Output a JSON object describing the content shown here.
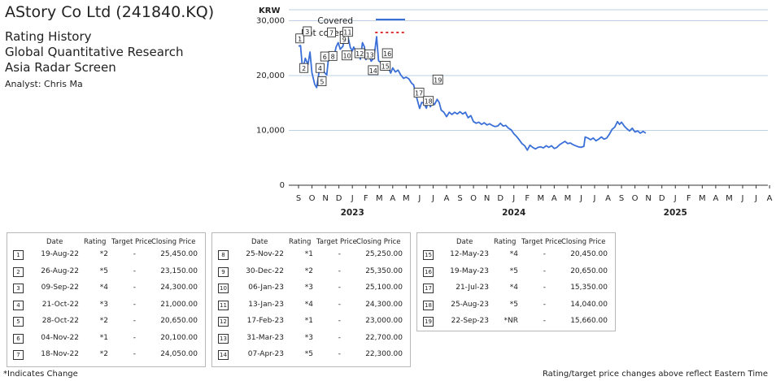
{
  "header": {
    "title": "AStory Co Ltd (241840.KQ)",
    "line1": "Rating History",
    "line2": "Global Quantitative Research",
    "line3": "Asia Radar Screen",
    "analyst": "Analyst: Chris Ma"
  },
  "chart_data": {
    "type": "line",
    "ylabel": "KRW",
    "yticks": [
      "0",
      "10,000",
      "20,000",
      "30,000"
    ],
    "ytick_values": [
      0,
      10000,
      20000,
      30000
    ],
    "ylim": [
      0,
      32000
    ],
    "grid": true,
    "legend_position": "top-left",
    "legend": [
      {
        "label": "Covered",
        "color": "#3a6fd8",
        "style": "solid"
      },
      {
        "label": "Not covered",
        "color": "#e03030",
        "style": "dotted"
      }
    ],
    "xticks": [
      "S",
      "O",
      "N",
      "D",
      "J",
      "F",
      "M",
      "A",
      "M",
      "J",
      "J",
      "A",
      "S",
      "O",
      "N",
      "D",
      "J",
      "F",
      "M",
      "A",
      "M",
      "J",
      "J",
      "A",
      "S",
      "O",
      "N",
      "D",
      "J",
      "F",
      "M",
      "A",
      "M",
      "J",
      "J",
      "A"
    ],
    "years": [
      {
        "label": "2023",
        "month_index": 4
      },
      {
        "label": "2024",
        "month_index": 16
      },
      {
        "label": "2025",
        "month_index": 28
      }
    ],
    "series": [
      {
        "name": "Covered",
        "color": "#3a6fd8",
        "points": [
          [
            0,
            25400
          ],
          [
            0.15,
            25450
          ],
          [
            0.3,
            21000
          ],
          [
            0.5,
            23150
          ],
          [
            0.7,
            22000
          ],
          [
            0.85,
            24300
          ],
          [
            1.0,
            20500
          ],
          [
            1.2,
            18400
          ],
          [
            1.35,
            17800
          ],
          [
            1.55,
            21000
          ],
          [
            1.7,
            21500
          ],
          [
            1.9,
            20650
          ],
          [
            2.1,
            20100
          ],
          [
            2.2,
            22500
          ],
          [
            2.4,
            24050
          ],
          [
            2.6,
            23200
          ],
          [
            2.8,
            25250
          ],
          [
            2.95,
            26000
          ],
          [
            3.1,
            24800
          ],
          [
            3.3,
            25350
          ],
          [
            3.5,
            27700
          ],
          [
            3.7,
            26800
          ],
          [
            3.85,
            25100
          ],
          [
            4.0,
            24500
          ],
          [
            4.1,
            25200
          ],
          [
            4.3,
            24300
          ],
          [
            4.5,
            23600
          ],
          [
            4.6,
            23000
          ],
          [
            4.75,
            26000
          ],
          [
            4.9,
            25200
          ],
          [
            5.0,
            22900
          ],
          [
            5.2,
            23800
          ],
          [
            5.4,
            22600
          ],
          [
            5.6,
            23200
          ],
          [
            5.8,
            27100
          ],
          [
            5.95,
            22700
          ],
          [
            6.1,
            22400
          ],
          [
            6.25,
            22300
          ],
          [
            6.45,
            21200
          ],
          [
            6.65,
            21600
          ],
          [
            6.85,
            20450
          ],
          [
            7.0,
            21400
          ],
          [
            7.2,
            20650
          ],
          [
            7.4,
            21000
          ],
          [
            7.6,
            20100
          ],
          [
            7.8,
            19500
          ],
          [
            8.0,
            19700
          ],
          [
            8.2,
            19400
          ],
          [
            8.4,
            18600
          ],
          [
            8.55,
            18300
          ],
          [
            8.7,
            16800
          ],
          [
            8.85,
            15350
          ],
          [
            9.0,
            14000
          ],
          [
            9.15,
            15100
          ],
          [
            9.3,
            15000
          ],
          [
            9.5,
            14040
          ],
          [
            9.65,
            15500
          ],
          [
            9.8,
            14300
          ],
          [
            9.95,
            15100
          ],
          [
            10.1,
            14700
          ],
          [
            10.3,
            15660
          ],
          [
            10.45,
            15100
          ],
          [
            10.6,
            13700
          ],
          [
            10.8,
            13300
          ],
          [
            11.0,
            12500
          ],
          [
            11.2,
            13300
          ],
          [
            11.4,
            12900
          ],
          [
            11.6,
            13300
          ],
          [
            11.8,
            13000
          ],
          [
            12.0,
            13400
          ],
          [
            12.2,
            13000
          ],
          [
            12.4,
            13300
          ],
          [
            12.6,
            12300
          ],
          [
            12.8,
            12700
          ],
          [
            13.0,
            11600
          ],
          [
            13.2,
            11300
          ],
          [
            13.4,
            11500
          ],
          [
            13.6,
            11100
          ],
          [
            13.8,
            11400
          ],
          [
            14.0,
            11000
          ],
          [
            14.2,
            11200
          ],
          [
            14.4,
            10900
          ],
          [
            14.6,
            10700
          ],
          [
            14.8,
            10800
          ],
          [
            15.0,
            11300
          ],
          [
            15.2,
            10800
          ],
          [
            15.4,
            10900
          ],
          [
            15.6,
            10400
          ],
          [
            15.8,
            10100
          ],
          [
            16.0,
            9400
          ],
          [
            16.2,
            8900
          ],
          [
            16.4,
            8300
          ],
          [
            16.6,
            7600
          ],
          [
            16.8,
            7200
          ],
          [
            17.0,
            6400
          ],
          [
            17.2,
            7300
          ],
          [
            17.4,
            6900
          ],
          [
            17.6,
            6600
          ],
          [
            17.8,
            6900
          ],
          [
            18.0,
            7000
          ],
          [
            18.2,
            6800
          ],
          [
            18.4,
            7200
          ],
          [
            18.6,
            6900
          ],
          [
            18.8,
            7200
          ],
          [
            19.0,
            6700
          ],
          [
            19.2,
            6900
          ],
          [
            19.4,
            7400
          ],
          [
            19.6,
            7700
          ],
          [
            19.8,
            8000
          ],
          [
            20.0,
            7600
          ],
          [
            20.2,
            7700
          ],
          [
            20.4,
            7400
          ],
          [
            20.6,
            7200
          ],
          [
            20.8,
            7000
          ],
          [
            21.0,
            6900
          ],
          [
            21.2,
            7100
          ],
          [
            21.3,
            8800
          ],
          [
            21.5,
            8600
          ],
          [
            21.7,
            8300
          ],
          [
            21.9,
            8600
          ],
          [
            22.1,
            8100
          ],
          [
            22.3,
            8400
          ],
          [
            22.5,
            8800
          ],
          [
            22.7,
            8400
          ],
          [
            22.9,
            8600
          ],
          [
            23.1,
            9300
          ],
          [
            23.3,
            10200
          ],
          [
            23.5,
            10600
          ],
          [
            23.7,
            11600
          ],
          [
            23.85,
            11100
          ],
          [
            24.0,
            11500
          ],
          [
            24.2,
            10800
          ],
          [
            24.4,
            10300
          ],
          [
            24.6,
            9900
          ],
          [
            24.8,
            10400
          ],
          [
            25.0,
            9700
          ],
          [
            25.2,
            9900
          ],
          [
            25.4,
            9500
          ],
          [
            25.6,
            9800
          ],
          [
            25.8,
            9500
          ]
        ]
      }
    ],
    "markers": [
      {
        "id": "1",
        "x": 0.1,
        "y": 26700
      },
      {
        "id": "2",
        "x": 0.4,
        "y": 21300
      },
      {
        "id": "3",
        "x": 0.65,
        "y": 28000
      },
      {
        "id": "4",
        "x": 1.6,
        "y": 21300
      },
      {
        "id": "5",
        "x": 1.75,
        "y": 18900
      },
      {
        "id": "6",
        "x": 1.95,
        "y": 23400
      },
      {
        "id": "7",
        "x": 2.45,
        "y": 27800
      },
      {
        "id": "8",
        "x": 2.55,
        "y": 23500
      },
      {
        "id": "9",
        "x": 3.4,
        "y": 26600
      },
      {
        "id": "10",
        "x": 3.6,
        "y": 23600
      },
      {
        "id": "11",
        "x": 3.65,
        "y": 27900
      },
      {
        "id": "12",
        "x": 4.55,
        "y": 24000
      },
      {
        "id": "13",
        "x": 5.3,
        "y": 23800
      },
      {
        "id": "14",
        "x": 5.55,
        "y": 20900
      },
      {
        "id": "15",
        "x": 6.45,
        "y": 21700
      },
      {
        "id": "16",
        "x": 6.6,
        "y": 24000
      },
      {
        "id": "17",
        "x": 8.95,
        "y": 16800
      },
      {
        "id": "18",
        "x": 9.65,
        "y": 15300
      },
      {
        "id": "19",
        "x": 10.35,
        "y": 19200
      }
    ]
  },
  "table": {
    "headers": {
      "date": "Date",
      "rating": "Rating",
      "target": "Target Price",
      "close": "Closing Price"
    },
    "groups": [
      [
        {
          "num": "1",
          "date": "19-Aug-22",
          "rating": "*2",
          "target": "-",
          "close": "25,450.00"
        },
        {
          "num": "2",
          "date": "26-Aug-22",
          "rating": "*5",
          "target": "-",
          "close": "23,150.00"
        },
        {
          "num": "3",
          "date": "09-Sep-22",
          "rating": "*4",
          "target": "-",
          "close": "24,300.00"
        },
        {
          "num": "4",
          "date": "21-Oct-22",
          "rating": "*3",
          "target": "-",
          "close": "21,000.00"
        },
        {
          "num": "5",
          "date": "28-Oct-22",
          "rating": "*2",
          "target": "-",
          "close": "20,650.00"
        },
        {
          "num": "6",
          "date": "04-Nov-22",
          "rating": "*1",
          "target": "-",
          "close": "20,100.00"
        },
        {
          "num": "7",
          "date": "18-Nov-22",
          "rating": "*2",
          "target": "-",
          "close": "24,050.00"
        }
      ],
      [
        {
          "num": "8",
          "date": "25-Nov-22",
          "rating": "*1",
          "target": "-",
          "close": "25,250.00"
        },
        {
          "num": "9",
          "date": "30-Dec-22",
          "rating": "*2",
          "target": "-",
          "close": "25,350.00"
        },
        {
          "num": "10",
          "date": "06-Jan-23",
          "rating": "*3",
          "target": "-",
          "close": "25,100.00"
        },
        {
          "num": "11",
          "date": "13-Jan-23",
          "rating": "*4",
          "target": "-",
          "close": "24,300.00"
        },
        {
          "num": "12",
          "date": "17-Feb-23",
          "rating": "*1",
          "target": "-",
          "close": "23,000.00"
        },
        {
          "num": "13",
          "date": "31-Mar-23",
          "rating": "*3",
          "target": "-",
          "close": "22,700.00"
        },
        {
          "num": "14",
          "date": "07-Apr-23",
          "rating": "*5",
          "target": "-",
          "close": "22,300.00"
        }
      ],
      [
        {
          "num": "15",
          "date": "12-May-23",
          "rating": "*4",
          "target": "-",
          "close": "20,450.00"
        },
        {
          "num": "16",
          "date": "19-May-23",
          "rating": "*5",
          "target": "-",
          "close": "20,650.00"
        },
        {
          "num": "17",
          "date": "21-Jul-23",
          "rating": "*4",
          "target": "-",
          "close": "15,350.00"
        },
        {
          "num": "18",
          "date": "25-Aug-23",
          "rating": "*5",
          "target": "-",
          "close": "14,040.00"
        },
        {
          "num": "19",
          "date": "22-Sep-23",
          "rating": "*NR",
          "target": "-",
          "close": "15,660.00"
        }
      ]
    ]
  },
  "footer": {
    "left": "*Indicates Change",
    "right": "Rating/target price changes above reflect Eastern Time"
  }
}
